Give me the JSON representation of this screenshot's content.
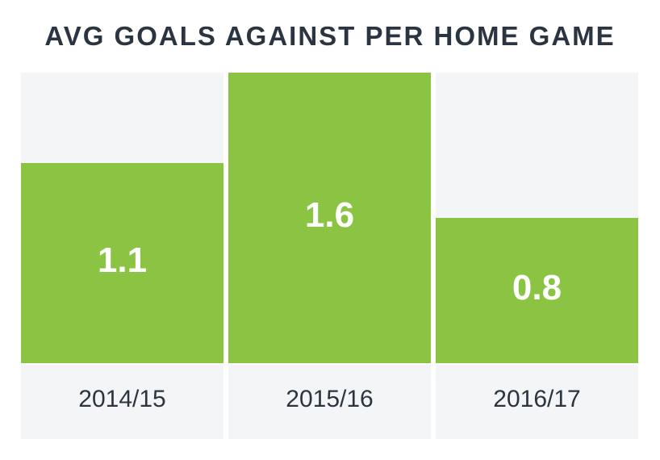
{
  "chart_data": {
    "type": "bar",
    "title": "AVG GOALS AGAINST PER HOME GAME",
    "categories": [
      "2014/15",
      "2015/16",
      "2016/17"
    ],
    "values": [
      1.1,
      1.6,
      0.8
    ],
    "value_labels": [
      "1.1",
      "1.6",
      "0.8"
    ],
    "ylim": [
      0,
      1.6
    ],
    "grid": false,
    "legend": "none",
    "colors": {
      "bar": "#8bc443",
      "background": "#f4f5f7",
      "label_text": "#2b3541",
      "value_text": "#ffffff"
    }
  }
}
